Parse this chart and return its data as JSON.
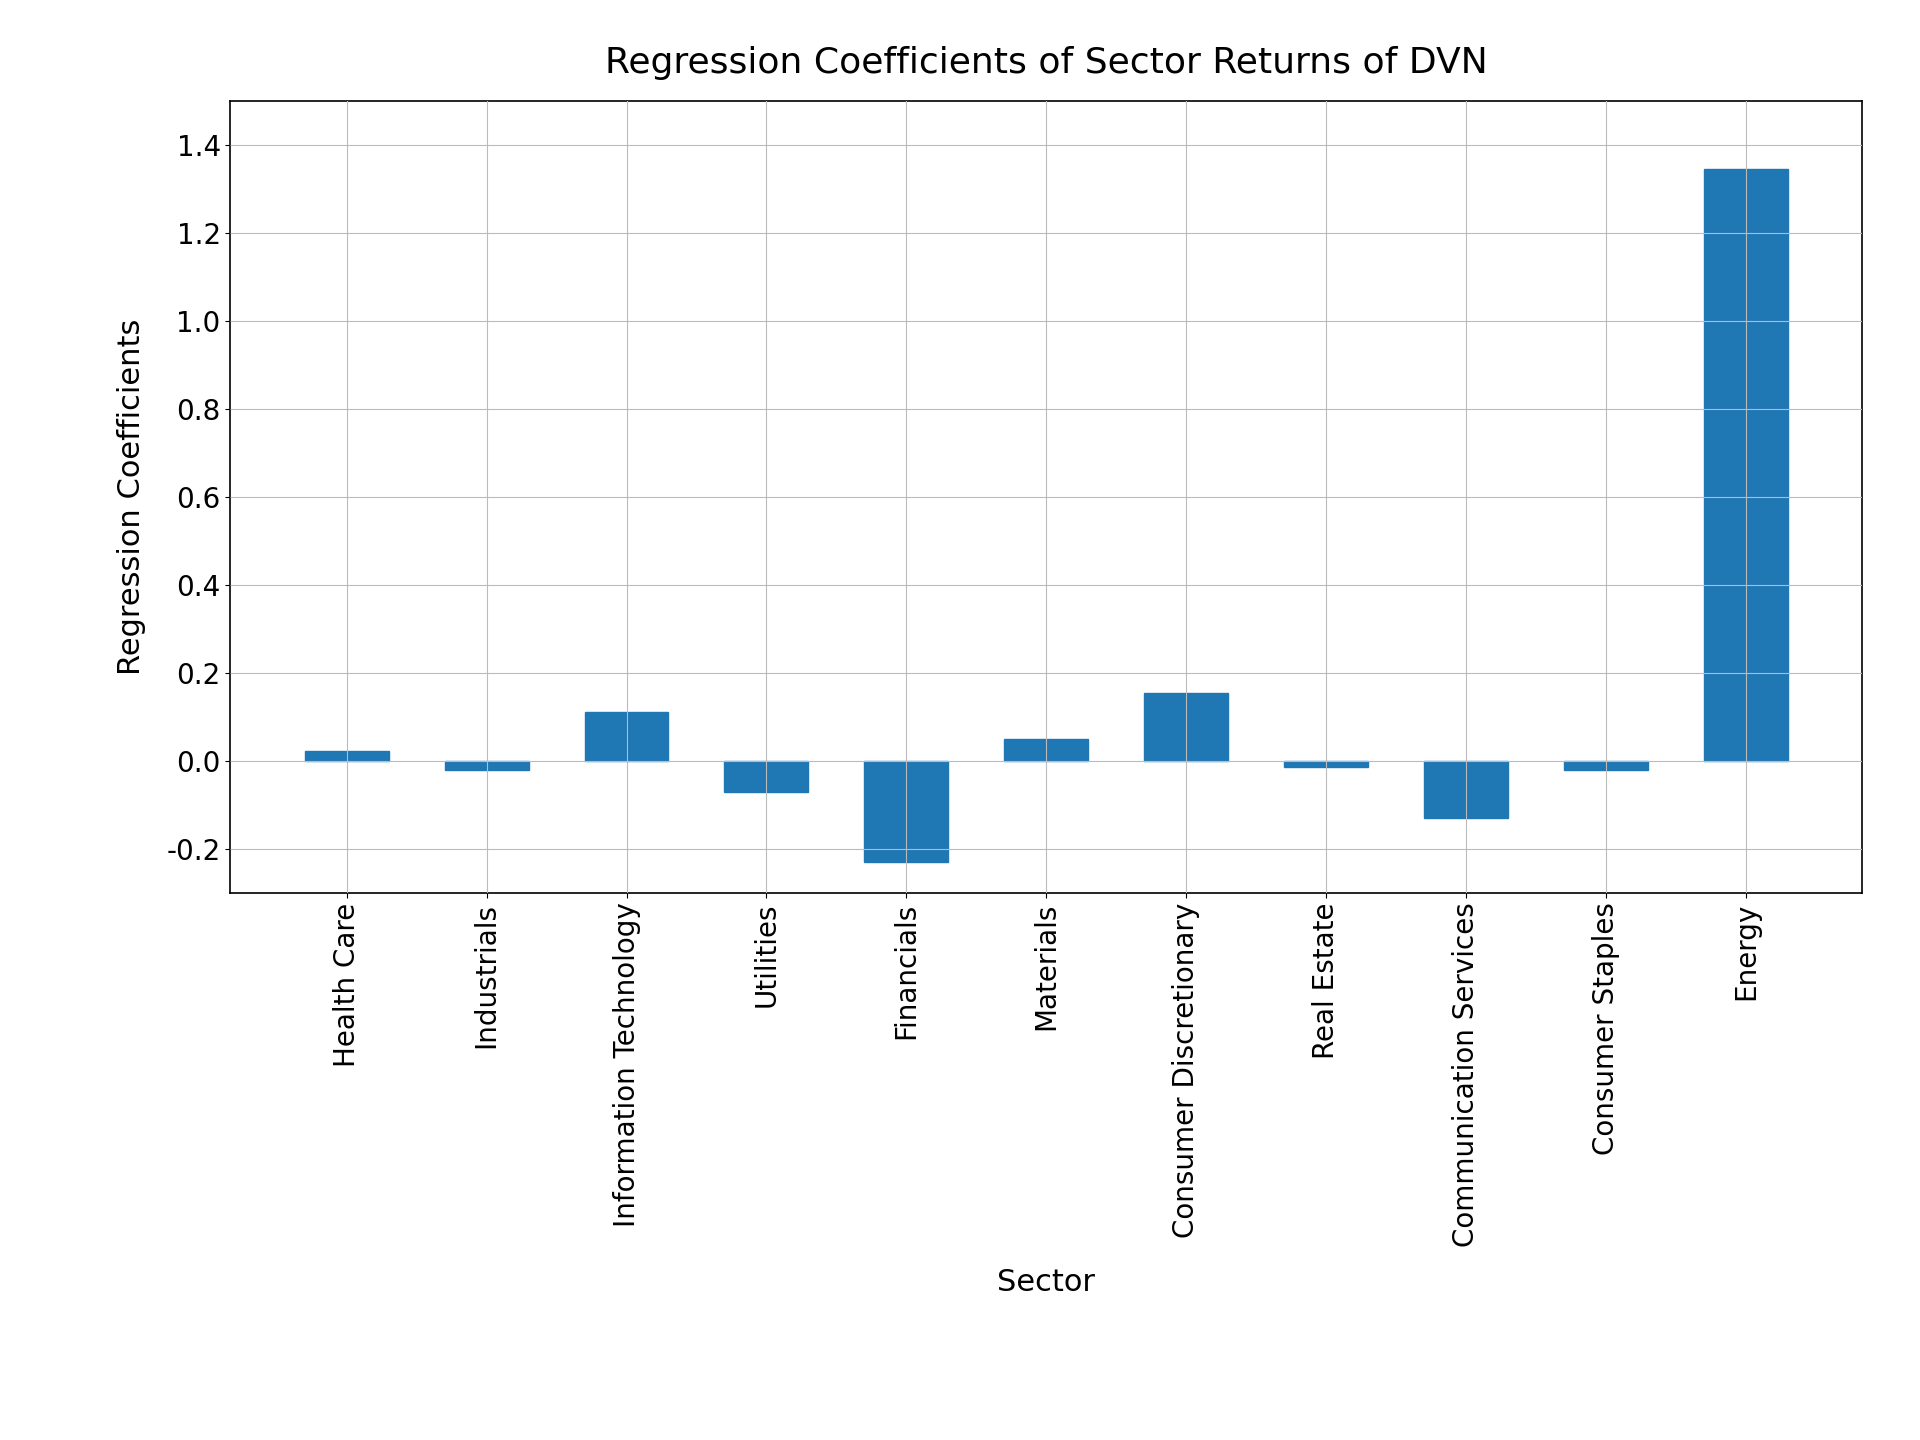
{
  "title": "Regression Coefficients of Sector Returns of DVN",
  "xlabel": "Sector",
  "ylabel": "Regression Coefficients",
  "categories": [
    "Health Care",
    "Industrials",
    "Information Technology",
    "Utilities",
    "Financials",
    "Materials",
    "Consumer Discretionary",
    "Real Estate",
    "Communication Services",
    "Consumer Staples",
    "Energy"
  ],
  "values": [
    0.022,
    -0.02,
    0.11,
    -0.07,
    -0.23,
    0.05,
    0.155,
    -0.015,
    -0.13,
    -0.02,
    1.345
  ],
  "bar_color": "#1f77b4",
  "ylim": [
    -0.3,
    1.5
  ],
  "yticks": [
    -0.2,
    0.0,
    0.2,
    0.4,
    0.6,
    0.8,
    1.0,
    1.2,
    1.4
  ],
  "title_fontsize": 26,
  "label_fontsize": 22,
  "tick_fontsize": 20,
  "background_color": "#ffffff",
  "grid_color": "#bbbbbb"
}
